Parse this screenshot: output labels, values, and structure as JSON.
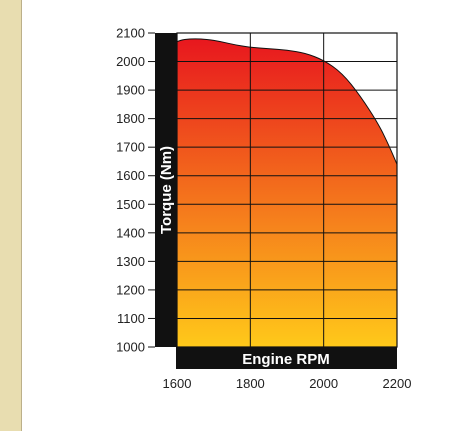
{
  "chart_data": {
    "type": "area",
    "xlabel": "Engine RPM",
    "ylabel": "Torque (Nm)",
    "xlim": [
      1600,
      2200
    ],
    "ylim": [
      1000,
      2100
    ],
    "x_ticks": [
      1600,
      1800,
      2000,
      2200
    ],
    "y_ticks": [
      1000,
      1100,
      1200,
      1300,
      1400,
      1500,
      1600,
      1700,
      1800,
      1900,
      2000,
      2100
    ],
    "grid": true,
    "series": [
      {
        "x": [
          1600,
          1620,
          1650,
          1680,
          1720,
          1760,
          1800,
          1850,
          1900,
          1950,
          2000,
          2050,
          2100,
          2150,
          2180,
          2200
        ],
        "values": [
          2070,
          2078,
          2080,
          2078,
          2070,
          2058,
          2050,
          2045,
          2040,
          2030,
          2005,
          1960,
          1880,
          1780,
          1700,
          1640
        ]
      }
    ],
    "fill_gradient": [
      "#e8171e",
      "#ffc91a"
    ]
  }
}
